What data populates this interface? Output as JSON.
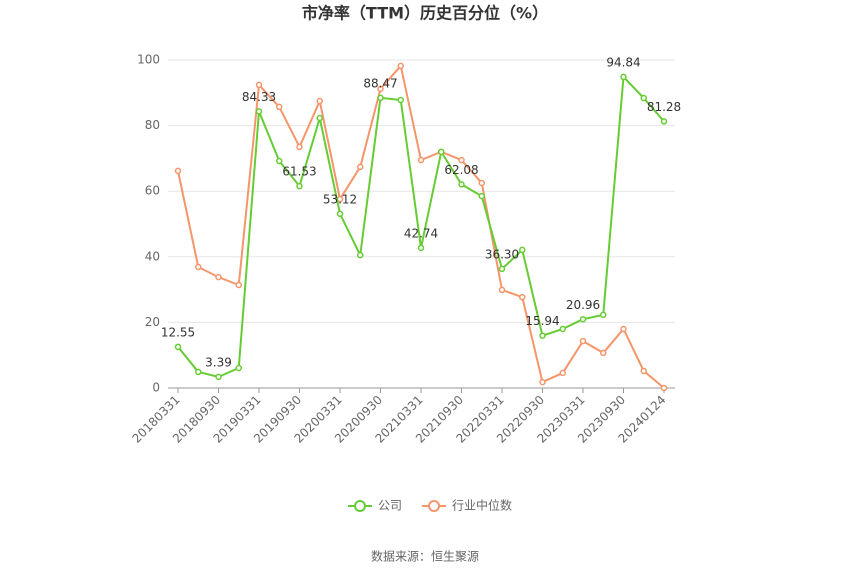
{
  "chart_data": {
    "type": "line",
    "title": "市净率（TTM）历史百分位（%）",
    "source": "数据来源：恒生聚源",
    "categories": [
      "20180331",
      null,
      "20180930",
      null,
      "20190331",
      null,
      "20190930",
      null,
      "20200331",
      null,
      "20200930",
      null,
      "20210331",
      null,
      "20210930",
      null,
      "20220331",
      null,
      "20220930",
      null,
      "20230331",
      null,
      "20230930",
      null,
      "20240124"
    ],
    "series": [
      {
        "name": "公司",
        "color": "#66cc33",
        "values": [
          12.55,
          4.9,
          3.39,
          6.1,
          84.33,
          69.2,
          61.53,
          82.3,
          53.12,
          40.5,
          88.47,
          87.8,
          42.74,
          72.0,
          62.08,
          58.5,
          36.3,
          42.1,
          15.94,
          18.0,
          20.96,
          22.3,
          94.84,
          88.4,
          81.28
        ],
        "value_labels": [
          "12.55",
          null,
          "3.39",
          null,
          "84.33",
          null,
          "61.53",
          null,
          "53.12",
          null,
          "88.47",
          null,
          "42.74",
          null,
          "62.08",
          null,
          "36.30",
          null,
          "15.94",
          null,
          "20.96",
          null,
          "94.84",
          null,
          "81.28"
        ]
      },
      {
        "name": "行业中位数",
        "color": "#f4956a",
        "values": [
          66.2,
          36.9,
          33.8,
          31.4,
          92.4,
          85.7,
          73.5,
          87.5,
          57.6,
          67.4,
          91.2,
          98.2,
          69.5,
          72.0,
          69.5,
          62.5,
          29.9,
          27.7,
          1.8,
          4.6,
          14.3,
          10.7,
          18.0,
          5.2,
          0
        ]
      }
    ],
    "ylim": [
      0,
      100
    ],
    "yticks": [
      0,
      20,
      40,
      60,
      80,
      100
    ],
    "grid": true,
    "legend": "bottom"
  }
}
